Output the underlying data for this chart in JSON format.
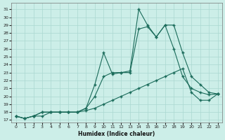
{
  "xlabel": "Humidex (Indice chaleur)",
  "xlim": [
    -0.5,
    23.5
  ],
  "ylim": [
    16.7,
    31.8
  ],
  "yticks": [
    17,
    18,
    19,
    20,
    21,
    22,
    23,
    24,
    25,
    26,
    27,
    28,
    29,
    30,
    31
  ],
  "xticks": [
    0,
    1,
    2,
    3,
    4,
    5,
    6,
    7,
    8,
    9,
    10,
    11,
    12,
    13,
    14,
    15,
    16,
    17,
    18,
    19,
    20,
    21,
    22,
    23
  ],
  "bg": "#cceee8",
  "grid_color": "#aad8d0",
  "lc": "#1a6b5a",
  "series1": [
    17.5,
    17.2,
    17.5,
    18.0,
    18.0,
    18.0,
    18.0,
    18.0,
    18.5,
    21.5,
    25.5,
    22.8,
    23.0,
    23.2,
    31.0,
    29.0,
    27.5,
    29.0,
    29.0,
    25.5,
    22.5,
    21.5,
    20.5,
    20.3
  ],
  "series2": [
    17.5,
    17.2,
    17.5,
    18.0,
    18.0,
    18.0,
    18.0,
    18.0,
    18.5,
    20.0,
    22.5,
    23.0,
    23.0,
    23.0,
    28.5,
    28.8,
    27.5,
    29.0,
    26.0,
    22.5,
    21.0,
    20.5,
    20.2,
    20.3
  ],
  "series3": [
    17.5,
    17.2,
    17.5,
    17.5,
    18.0,
    18.0,
    18.0,
    18.0,
    18.2,
    18.5,
    19.0,
    19.5,
    20.0,
    20.5,
    21.0,
    21.5,
    22.0,
    22.5,
    23.0,
    23.5,
    20.5,
    19.5,
    19.5,
    20.3
  ]
}
